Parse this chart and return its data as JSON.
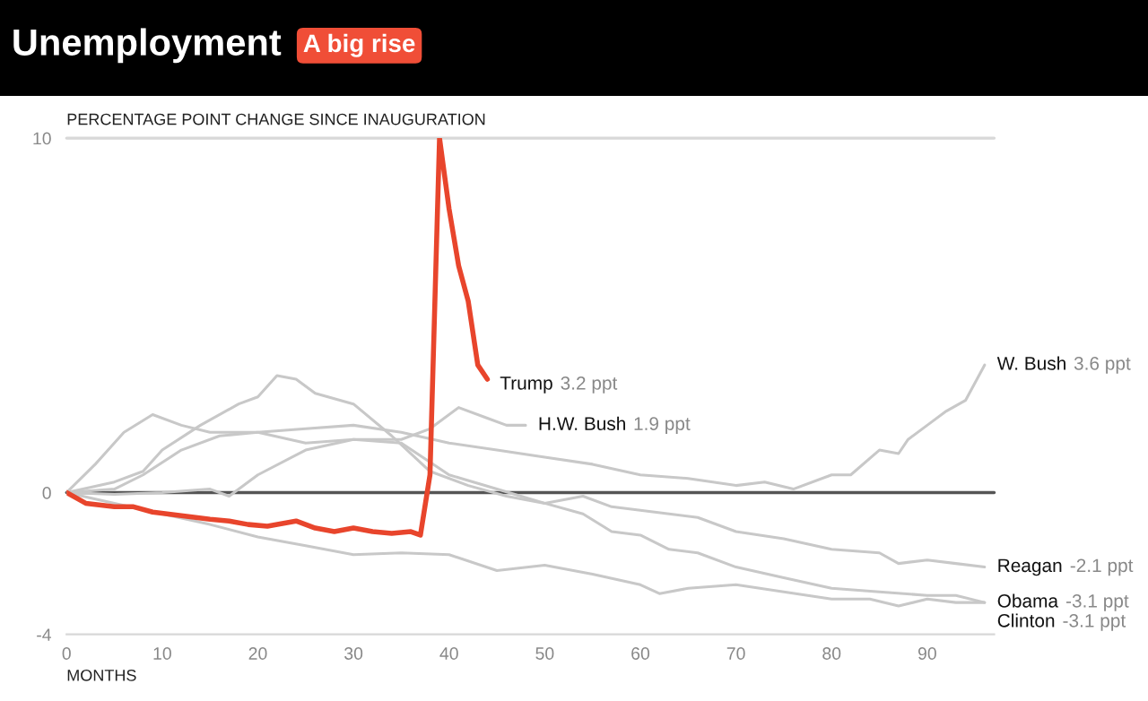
{
  "chart_data": {
    "type": "line",
    "title": "Unemployment",
    "subtitle": "A big rise",
    "xlabel": "MONTHS",
    "ylabel": "PERCENTAGE POINT CHANGE SINCE INAUGURATION",
    "xlim": [
      0,
      97
    ],
    "xticks": [
      0,
      10,
      20,
      30,
      40,
      50,
      60,
      70,
      80,
      90
    ],
    "ylim": [
      -4,
      10
    ],
    "yticks": [
      -4,
      0,
      10
    ],
    "legend": false,
    "marker": "none",
    "line_style": "solid",
    "ref_lines": [
      {
        "axis": "y",
        "value": 10,
        "color": "#d8d8d8"
      },
      {
        "axis": "y",
        "value": 0,
        "color": "#555555"
      }
    ],
    "series": [
      {
        "name": "W. Bush",
        "color": "#c8c8c8",
        "x": [
          0,
          5,
          8,
          12,
          16,
          20,
          25,
          30,
          35,
          40,
          45,
          50,
          55,
          60,
          65,
          70,
          73,
          76,
          80,
          82,
          85,
          87,
          88,
          90,
          92,
          94,
          96
        ],
        "values": [
          0,
          0.1,
          0.5,
          1.2,
          1.6,
          1.7,
          1.8,
          1.9,
          1.7,
          1.4,
          1.2,
          1.0,
          0.8,
          0.5,
          0.4,
          0.2,
          0.3,
          0.1,
          0.5,
          0.5,
          1.2,
          1.1,
          1.5,
          1.9,
          2.3,
          2.6,
          3.6
        ]
      },
      {
        "name": "H.W. Bush",
        "color": "#c8c8c8",
        "x": [
          0,
          5,
          10,
          15,
          17,
          20,
          25,
          30,
          35,
          38,
          41,
          44,
          46,
          48
        ],
        "values": [
          0,
          -0.05,
          0,
          0.1,
          -0.1,
          0.5,
          1.2,
          1.5,
          1.5,
          1.8,
          2.4,
          2.1,
          1.9,
          1.9
        ]
      },
      {
        "name": "Reagan",
        "color": "#c8c8c8",
        "x": [
          0,
          5,
          8,
          10,
          14,
          18,
          20,
          22,
          24,
          26,
          30,
          34,
          38,
          42,
          46,
          50,
          54,
          57,
          60,
          63,
          66,
          70,
          75,
          80,
          85,
          87,
          90,
          93,
          96
        ],
        "values": [
          0,
          0.3,
          0.6,
          1.2,
          1.9,
          2.5,
          2.7,
          3.3,
          3.2,
          2.8,
          2.5,
          1.6,
          0.6,
          0.2,
          -0.1,
          -0.3,
          -0.1,
          -0.4,
          -0.5,
          -0.6,
          -0.7,
          -1.1,
          -1.3,
          -1.6,
          -1.7,
          -2.0,
          -1.9,
          -2.0,
          -2.1
        ]
      },
      {
        "name": "Obama",
        "color": "#c8c8c8",
        "x": [
          0,
          3,
          6,
          9,
          12,
          15,
          20,
          25,
          30,
          35,
          40,
          45,
          50,
          54,
          57,
          60,
          63,
          66,
          70,
          75,
          80,
          85,
          90,
          93,
          96
        ],
        "values": [
          0,
          0.8,
          1.7,
          2.2,
          1.9,
          1.7,
          1.7,
          1.4,
          1.5,
          1.4,
          0.5,
          0.1,
          -0.3,
          -0.6,
          -1.1,
          -1.2,
          -1.6,
          -1.7,
          -2.1,
          -2.4,
          -2.7,
          -2.8,
          -2.9,
          -2.9,
          -3.1
        ]
      },
      {
        "name": "Clinton",
        "color": "#c8c8c8",
        "x": [
          0,
          5,
          10,
          15,
          20,
          25,
          30,
          35,
          40,
          45,
          50,
          55,
          60,
          62,
          65,
          70,
          75,
          80,
          84,
          87,
          90,
          93,
          96
        ],
        "values": [
          0,
          -0.3,
          -0.6,
          -0.9,
          -1.25,
          -1.5,
          -1.75,
          -1.7,
          -1.75,
          -2.2,
          -2.05,
          -2.3,
          -2.6,
          -2.85,
          -2.7,
          -2.6,
          -2.8,
          -3.0,
          -3.0,
          -3.2,
          -3.0,
          -3.1,
          -3.1
        ]
      },
      {
        "name": "Trump",
        "color": "#e8452c",
        "x": [
          0,
          2,
          5,
          7,
          9,
          12,
          15,
          17,
          19,
          21,
          24,
          26,
          28,
          30,
          32,
          34,
          36,
          37,
          38,
          39,
          40,
          41,
          42,
          43,
          44
        ],
        "values": [
          0,
          -0.3,
          -0.4,
          -0.4,
          -0.55,
          -0.65,
          -0.75,
          -0.8,
          -0.9,
          -0.95,
          -0.8,
          -1.0,
          -1.1,
          -1.0,
          -1.1,
          -1.15,
          -1.1,
          -1.2,
          0.5,
          10,
          8.0,
          6.4,
          5.4,
          3.6,
          3.2
        ]
      }
    ],
    "annotations": [
      "3.6 ppt",
      "1.9 ppt",
      "-2.1 ppt",
      "-3.1 ppt",
      "-3.1 ppt",
      "3.2 ppt"
    ]
  }
}
